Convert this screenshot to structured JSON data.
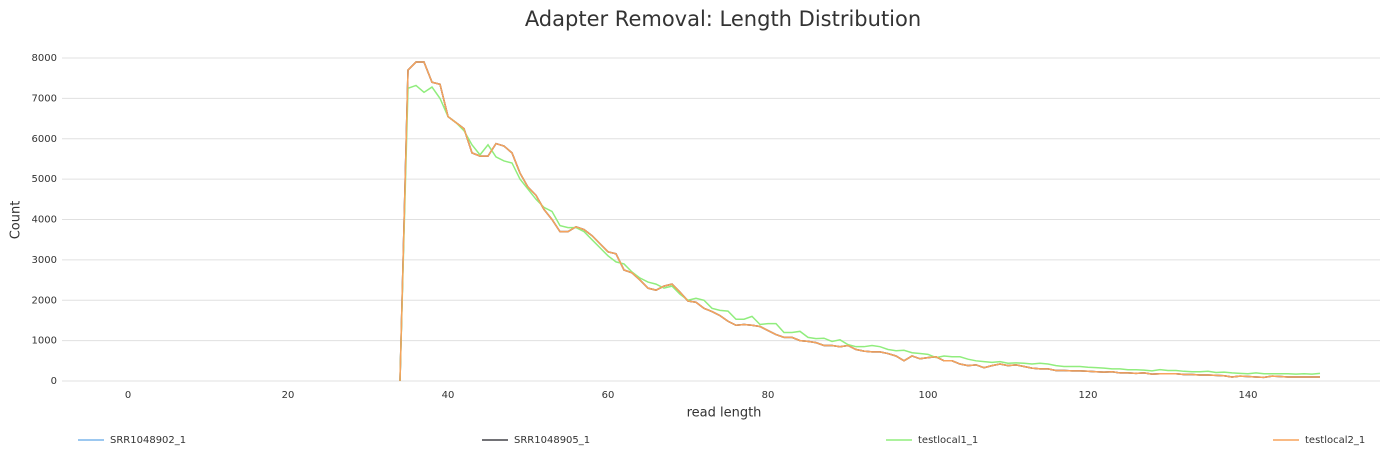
{
  "chart_data": {
    "type": "line",
    "title": "Adapter Removal: Length Distribution",
    "x_label": "read length",
    "y_label": "Count",
    "x": [
      34,
      35,
      36,
      37,
      38,
      39,
      40,
      41,
      42,
      43,
      44,
      45,
      46,
      47,
      48,
      49,
      50,
      51,
      52,
      53,
      54,
      55,
      56,
      57,
      58,
      59,
      60,
      61,
      62,
      63,
      64,
      65,
      66,
      67,
      68,
      69,
      70,
      71,
      72,
      73,
      74,
      75,
      76,
      77,
      78,
      79,
      80,
      81,
      82,
      83,
      84,
      85,
      86,
      87,
      88,
      89,
      90,
      91,
      92,
      93,
      94,
      95,
      96,
      97,
      98,
      99,
      100,
      101,
      102,
      103,
      104,
      105,
      106,
      107,
      108,
      109,
      110,
      111,
      112,
      113,
      114,
      115,
      116,
      117,
      118,
      119,
      120,
      121,
      122,
      123,
      124,
      125,
      126,
      127,
      128,
      129,
      130,
      131,
      132,
      133,
      134,
      135,
      136,
      137,
      138,
      139,
      140,
      141,
      142,
      143,
      144,
      145,
      146,
      147,
      148,
      149
    ],
    "series": [
      {
        "name": "SRR1048902_1",
        "color": "#7cb5ec",
        "values": [
          0,
          7700,
          7900,
          7900,
          7400,
          7350,
          6550,
          6400,
          6250,
          5650,
          5570,
          5570,
          5880,
          5820,
          5650,
          5150,
          4800,
          4600,
          4250,
          4000,
          3700,
          3700,
          3820,
          3750,
          3600,
          3400,
          3200,
          3150,
          2750,
          2680,
          2500,
          2300,
          2250,
          2350,
          2400,
          2200,
          1980,
          1950,
          1800,
          1720,
          1620,
          1480,
          1380,
          1400,
          1380,
          1350,
          1250,
          1150,
          1080,
          1080,
          1000,
          980,
          950,
          880,
          880,
          850,
          880,
          780,
          740,
          720,
          720,
          680,
          620,
          500,
          620,
          550,
          580,
          600,
          500,
          500,
          420,
          380,
          400,
          330,
          380,
          420,
          380,
          400,
          360,
          320,
          300,
          300,
          260,
          260,
          250,
          250,
          240,
          230,
          220,
          230,
          200,
          200,
          190,
          200,
          170,
          180,
          180,
          180,
          160,
          160,
          150,
          150,
          140,
          130,
          100,
          120,
          110,
          100,
          90,
          120,
          110,
          100,
          100,
          100,
          100,
          100
        ]
      },
      {
        "name": "SRR1048905_1",
        "color": "#434348",
        "values": [
          0,
          7700,
          7900,
          7900,
          7400,
          7350,
          6550,
          6400,
          6250,
          5650,
          5570,
          5570,
          5880,
          5820,
          5650,
          5150,
          4800,
          4600,
          4250,
          4000,
          3700,
          3700,
          3820,
          3750,
          3600,
          3400,
          3200,
          3150,
          2750,
          2680,
          2500,
          2300,
          2250,
          2350,
          2400,
          2200,
          1980,
          1950,
          1800,
          1720,
          1620,
          1480,
          1380,
          1400,
          1380,
          1350,
          1250,
          1150,
          1080,
          1080,
          1000,
          980,
          950,
          880,
          880,
          850,
          880,
          780,
          740,
          720,
          720,
          680,
          620,
          500,
          620,
          550,
          580,
          600,
          500,
          500,
          420,
          380,
          400,
          330,
          380,
          420,
          380,
          400,
          360,
          320,
          300,
          300,
          260,
          260,
          250,
          250,
          240,
          230,
          220,
          230,
          200,
          200,
          190,
          200,
          170,
          180,
          180,
          180,
          160,
          160,
          150,
          150,
          140,
          130,
          100,
          120,
          110,
          100,
          90,
          120,
          110,
          100,
          100,
          100,
          100,
          100
        ]
      },
      {
        "name": "testlocal1_1",
        "color": "#90ed7d",
        "values": [
          0,
          7250,
          7320,
          7150,
          7280,
          7000,
          6550,
          6400,
          6200,
          5850,
          5600,
          5850,
          5550,
          5450,
          5400,
          5000,
          4750,
          4500,
          4300,
          4200,
          3850,
          3800,
          3800,
          3700,
          3500,
          3300,
          3100,
          2950,
          2900,
          2700,
          2550,
          2450,
          2400,
          2300,
          2350,
          2150,
          2000,
          2050,
          2000,
          1800,
          1750,
          1730,
          1530,
          1530,
          1600,
          1400,
          1420,
          1420,
          1200,
          1200,
          1230,
          1080,
          1050,
          1060,
          980,
          1020,
          900,
          850,
          850,
          880,
          850,
          780,
          750,
          760,
          700,
          680,
          660,
          580,
          620,
          600,
          600,
          540,
          500,
          480,
          460,
          480,
          440,
          450,
          440,
          420,
          440,
          420,
          380,
          360,
          360,
          360,
          340,
          330,
          320,
          300,
          300,
          280,
          280,
          270,
          250,
          280,
          260,
          260,
          240,
          230,
          230,
          240,
          210,
          220,
          200,
          190,
          180,
          200,
          180,
          180,
          180,
          180,
          170,
          180,
          170,
          190
        ]
      },
      {
        "name": "testlocal2_1",
        "color": "#f7a35c",
        "values": [
          0,
          7700,
          7900,
          7900,
          7400,
          7350,
          6550,
          6400,
          6250,
          5650,
          5570,
          5570,
          5880,
          5820,
          5650,
          5150,
          4800,
          4600,
          4250,
          4000,
          3700,
          3700,
          3820,
          3750,
          3600,
          3400,
          3200,
          3150,
          2750,
          2680,
          2500,
          2300,
          2250,
          2350,
          2400,
          2200,
          1980,
          1950,
          1800,
          1720,
          1620,
          1480,
          1380,
          1400,
          1380,
          1350,
          1250,
          1150,
          1080,
          1080,
          1000,
          980,
          950,
          880,
          880,
          850,
          880,
          780,
          740,
          720,
          720,
          680,
          620,
          500,
          620,
          550,
          580,
          600,
          500,
          500,
          420,
          380,
          400,
          330,
          380,
          420,
          380,
          400,
          360,
          320,
          300,
          300,
          260,
          260,
          250,
          250,
          240,
          230,
          220,
          230,
          200,
          200,
          190,
          200,
          170,
          180,
          180,
          180,
          160,
          160,
          150,
          150,
          140,
          130,
          100,
          120,
          110,
          100,
          90,
          120,
          110,
          100,
          100,
          100,
          100,
          100
        ]
      }
    ],
    "xlim": [
      -7,
      156
    ],
    "xticks": [
      0,
      20,
      40,
      60,
      80,
      100,
      120,
      140
    ],
    "ylim": [
      0,
      8000
    ],
    "yticks": [
      0,
      1000,
      2000,
      3000,
      4000,
      5000,
      6000,
      7000,
      8000
    ],
    "grid": true,
    "legend": "bottom"
  }
}
